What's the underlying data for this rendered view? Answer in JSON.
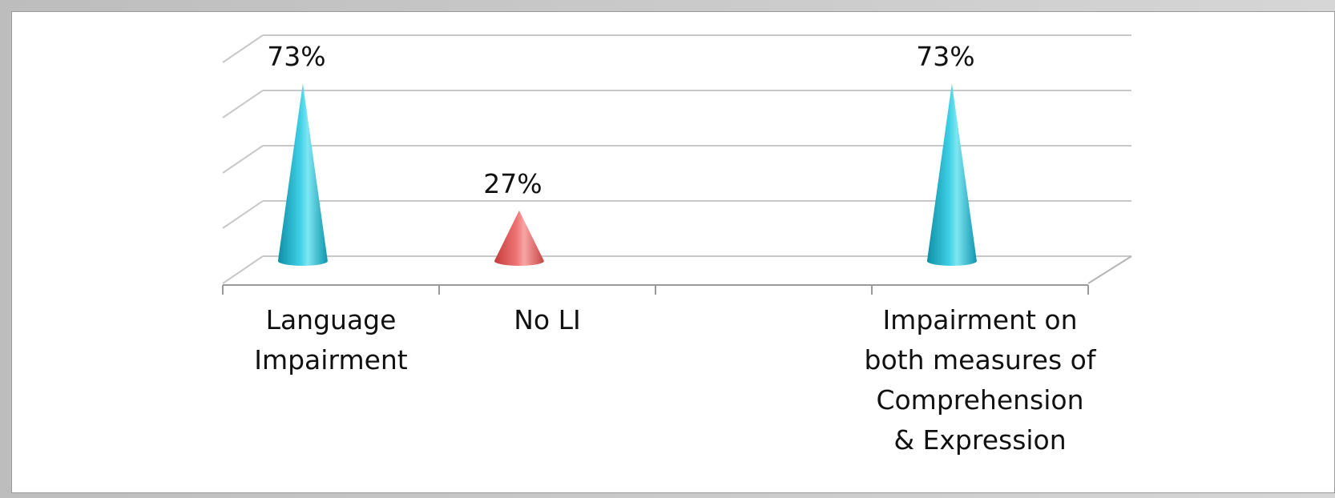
{
  "chart_data": {
    "type": "bar",
    "style": "3d-cone",
    "categories": [
      "Language Impairment",
      "No LI",
      "",
      "Impairment on both measures of Comprehension & Expression"
    ],
    "category_labels": [
      "Language\nImpairment",
      "No LI",
      "",
      "Impairment on\nboth measures of\nComprehension\n& Expression"
    ],
    "values": [
      73,
      27,
      null,
      73
    ],
    "value_labels": [
      "73%",
      "27%",
      "",
      "73%"
    ],
    "colors": [
      "#1fb3cc",
      "#e05c5c",
      "",
      "#1fb3cc"
    ],
    "ylim": [
      0,
      80
    ],
    "grid": true,
    "legend": "none",
    "title": "",
    "xlabel": "",
    "ylabel": ""
  }
}
